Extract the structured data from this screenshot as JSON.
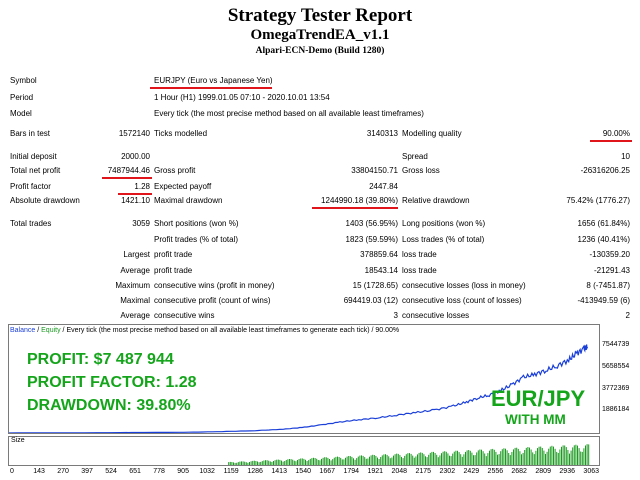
{
  "report": {
    "title": "Strategy Tester Report",
    "ea_name": "OmegaTrendEA_v1.1",
    "server": "Alpari-ECN-Demo (Build 1280)"
  },
  "symbol_label": "Symbol",
  "symbol_value": "EURJPY (Euro vs Japanese Yen)",
  "period_label": "Period",
  "period_value": "1 Hour (H1) 1999.01.05 07:10 - 2020.10.01 13:54",
  "model_label": "Model",
  "model_value": "Every tick (the most precise method based on all available least timeframes)",
  "bars_in_test_label": "Bars in test",
  "bars_in_test_value": "1572140",
  "ticks_modelled_label": "Ticks modelled",
  "ticks_modelled_value": "3140313",
  "modelling_quality_label": "Modelling quality",
  "modelling_quality_value": "90.00%",
  "initial_deposit_label": "Initial deposit",
  "initial_deposit_value": "2000.00",
  "spread_label": "Spread",
  "spread_value": "10",
  "total_net_profit_label": "Total net profit",
  "total_net_profit_value": "7487944.46",
  "gross_profit_label": "Gross profit",
  "gross_profit_value": "33804150.71",
  "gross_loss_label": "Gross loss",
  "gross_loss_value": "-26316206.25",
  "profit_factor_label": "Profit factor",
  "profit_factor_value": "1.28",
  "expected_payoff_label": "Expected payoff",
  "expected_payoff_value": "2447.84",
  "absolute_drawdown_label": "Absolute drawdown",
  "absolute_drawdown_value": "1421.10",
  "maximal_drawdown_label": "Maximal drawdown",
  "maximal_drawdown_value": "1244990.18 (39.80%)",
  "relative_drawdown_label": "Relative drawdown",
  "relative_drawdown_value": "75.42% (1776.27)",
  "total_trades_label": "Total trades",
  "total_trades_value": "3059",
  "short_positions_label": "Short positions (won %)",
  "short_positions_value": "1403 (56.95%)",
  "long_positions_label": "Long positions (won %)",
  "long_positions_value": "1656 (61.84%)",
  "profit_trades_label": "Profit trades (% of total)",
  "profit_trades_value": "1823 (59.59%)",
  "loss_trades_label": "Loss trades (% of total)",
  "loss_trades_value": "1236 (40.41%)",
  "largest_label": "Largest",
  "largest_profit_label": "profit trade",
  "largest_profit_value": "378859.64",
  "largest_loss_label": "loss trade",
  "largest_loss_value": "-130359.20",
  "average_label": "Average",
  "average_profit_label": "profit trade",
  "average_profit_value": "18543.14",
  "average_loss_label": "loss trade",
  "average_loss_value": "-21291.43",
  "maximum_label": "Maximum",
  "max_consec_wins_label": "consecutive wins (profit in money)",
  "max_consec_wins_value": "15 (1728.65)",
  "max_consec_losses_label": "consecutive losses (loss in money)",
  "max_consec_losses_value": "8 (-7451.87)",
  "maximal_label": "Maximal",
  "maximal_consec_profit_label": "consecutive profit (count of wins)",
  "maximal_consec_profit_value": "694419.03 (12)",
  "maximal_consec_loss_label": "consecutive loss (count of losses)",
  "maximal_consec_loss_value": "-413949.59 (6)",
  "average_consec_label": "Average",
  "avg_consec_wins_label": "consecutive wins",
  "avg_consec_wins_value": "3",
  "avg_consec_losses_label": "consecutive losses",
  "avg_consec_losses_value": "2",
  "legend": {
    "balance": "Balance",
    "sep1": " / ",
    "equity": "Equity",
    "rest": " / Every tick (the most precise method based on all available least timeframes to generate each tick) / 90.00%"
  },
  "overlay": {
    "profit_label": "PROFIT: ",
    "profit_value": "$7 487 944",
    "profit_factor_label": "PROFIT FACTOR: ",
    "profit_factor_value": "1.28",
    "drawdown_label": "DRAWDOWN: ",
    "drawdown_value": "39.80%",
    "pair": "EUR/JPY",
    "mm": "WITH MM"
  },
  "size_label": "Size",
  "colors": {
    "balance_line": "#1a3fd8",
    "equity_line": "#1a9a20",
    "size_bars": "#1a9a20",
    "overlay_text": "#14a51b",
    "underline": "#e0151b"
  },
  "chart_data": {
    "type": "line",
    "title": "",
    "xlabel": "",
    "ylabel": "",
    "y_ticks": [
      "7544739",
      "5658554",
      "3772369",
      "1886184"
    ],
    "x_ticks": [
      "0",
      "143",
      "270",
      "397",
      "524",
      "651",
      "778",
      "905",
      "1032",
      "1159",
      "1286",
      "1413",
      "1540",
      "1667",
      "1794",
      "1921",
      "2048",
      "2175",
      "2302",
      "2429",
      "2556",
      "2682",
      "2809",
      "2936",
      "3063"
    ],
    "xlim": [
      0,
      3120
    ],
    "ylim": [
      0,
      8350000
    ],
    "series": [
      {
        "name": "Balance",
        "x": [
          0,
          400,
          900,
          1100,
          1300,
          1450,
          1550,
          1650,
          1750,
          1850,
          1950,
          2050,
          2150,
          2250,
          2350,
          2420,
          2480,
          2540,
          2600,
          2660,
          2720,
          2780,
          2840,
          2900,
          2960,
          3000,
          3040,
          3059
        ],
        "y": [
          2000,
          20000,
          60000,
          110000,
          200000,
          330000,
          480000,
          700000,
          950000,
          1150000,
          1320000,
          1550000,
          1780000,
          2000000,
          2350000,
          2700000,
          3050000,
          3300000,
          3700000,
          4200000,
          4850000,
          5100000,
          5450000,
          5850000,
          6350000,
          6900000,
          7300000,
          7489944
        ]
      }
    ],
    "size_series": {
      "name": "Size",
      "x_start": 1159,
      "x_end": 3063
    }
  }
}
